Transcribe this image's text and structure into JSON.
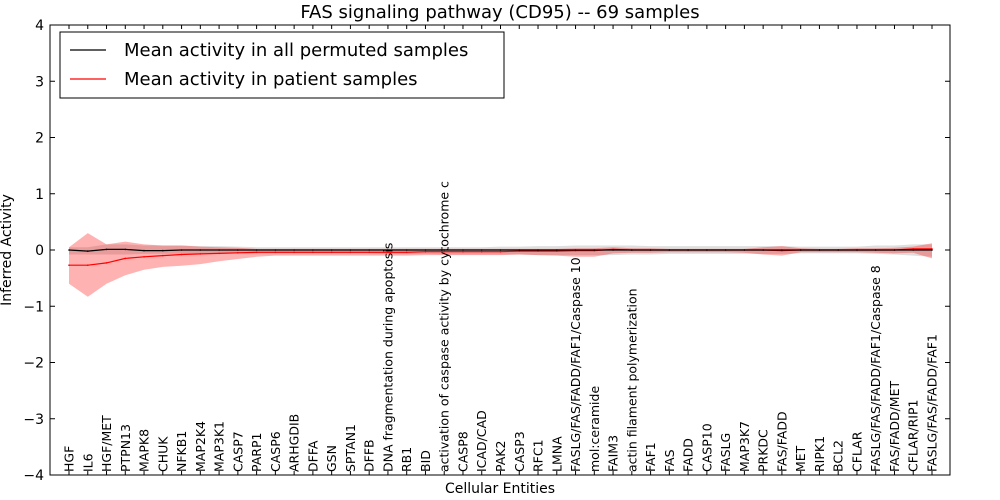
{
  "chart_data": {
    "type": "line",
    "title": "FAS signaling pathway (CD95) -- 69 samples",
    "xlabel": "Cellular Entities",
    "ylabel": "Inferred Activity",
    "ylim": [
      -4,
      4
    ],
    "yticks": [
      -4,
      -3,
      -2,
      -1,
      0,
      1,
      2,
      3,
      4
    ],
    "ytick_labels": [
      "−4",
      "−3",
      "−2",
      "−1",
      "0",
      "1",
      "2",
      "3",
      "4"
    ],
    "legend_position": "top-left",
    "categories": [
      "HGF",
      "IL6",
      "HGF/MET",
      "PTPN13",
      "MAPK8",
      "CHUK",
      "NFKB1",
      "MAP2K4",
      "MAP3K1",
      "CASP7",
      "PARP1",
      "CASP6",
      "ARHGDIB",
      "DFFA",
      "GSN",
      "SPTAN1",
      "DFFB",
      "DNA fragmentation during apoptosis",
      "RB1",
      "BID",
      "activation of caspase activity by cytochrome c",
      "CASP8",
      "ICAD/CAD",
      "PAK2",
      "CASP3",
      "RFC1",
      "LMNA",
      "FASLG/FAS/FADD/FAF1/Caspase 10",
      "mol:ceramide",
      "FAIM3",
      "actin filament polymerization",
      "FAF1",
      "FAS",
      "FADD",
      "CASP10",
      "FASLG",
      "MAP3K7",
      "PRKDC",
      "FAS/FADD",
      "MET",
      "RIPK1",
      "BCL2",
      "CFLAR",
      "FASLG/FAS/FADD/FAF1/Caspase 8",
      "FAS/FADD/MET",
      "CFLAR/RIP1",
      "FASLG/FAS/FADD/FAF1"
    ],
    "series": [
      {
        "name": "Mean activity in all permuted samples",
        "color": "#000000",
        "values": [
          0.0,
          -0.02,
          0.01,
          0.01,
          -0.01,
          -0.01,
          0.0,
          0.0,
          0.0,
          0.0,
          0.0,
          0.0,
          0.0,
          0.0,
          0.0,
          0.0,
          0.0,
          0.0,
          0.0,
          0.0,
          0.0,
          0.0,
          0.0,
          0.0,
          0.0,
          0.0,
          0.0,
          0.0,
          0.0,
          0.0,
          0.0,
          0.0,
          0.0,
          0.0,
          0.0,
          0.0,
          0.0,
          0.0,
          0.0,
          0.0,
          0.0,
          0.0,
          0.0,
          0.0,
          0.0,
          0.0,
          0.0
        ],
        "band_upper": [
          0.05,
          0.05,
          0.1,
          0.1,
          0.08,
          0.08,
          0.08,
          0.07,
          0.07,
          0.06,
          0.05,
          0.05,
          0.05,
          0.05,
          0.05,
          0.05,
          0.05,
          0.05,
          0.05,
          0.05,
          0.05,
          0.05,
          0.05,
          0.06,
          0.06,
          0.07,
          0.07,
          0.08,
          0.08,
          0.08,
          0.08,
          0.07,
          0.07,
          0.07,
          0.07,
          0.07,
          0.07,
          0.07,
          0.07,
          0.06,
          0.06,
          0.06,
          0.06,
          0.08,
          0.08,
          0.1,
          0.1
        ],
        "band_lower": [
          -0.08,
          -0.08,
          -0.08,
          -0.08,
          -0.07,
          -0.07,
          -0.07,
          -0.07,
          -0.06,
          -0.06,
          -0.06,
          -0.06,
          -0.06,
          -0.06,
          -0.06,
          -0.06,
          -0.06,
          -0.07,
          -0.07,
          -0.07,
          -0.08,
          -0.08,
          -0.08,
          -0.08,
          -0.08,
          -0.09,
          -0.09,
          -0.09,
          -0.09,
          -0.09,
          -0.08,
          -0.08,
          -0.07,
          -0.07,
          -0.07,
          -0.07,
          -0.07,
          -0.07,
          -0.07,
          -0.06,
          -0.06,
          -0.06,
          -0.06,
          -0.07,
          -0.08,
          -0.1,
          -0.12
        ]
      },
      {
        "name": "Mean activity in patient samples",
        "color": "#ff0000",
        "values": [
          -0.27,
          -0.27,
          -0.23,
          -0.15,
          -0.12,
          -0.1,
          -0.08,
          -0.07,
          -0.06,
          -0.05,
          -0.04,
          -0.04,
          -0.04,
          -0.04,
          -0.04,
          -0.04,
          -0.04,
          -0.04,
          -0.04,
          -0.03,
          -0.03,
          -0.03,
          -0.03,
          -0.03,
          -0.02,
          -0.02,
          -0.02,
          -0.01,
          -0.01,
          0.01,
          0.0,
          0.0,
          0.0,
          0.0,
          0.0,
          0.0,
          0.0,
          0.0,
          -0.01,
          0.0,
          0.0,
          0.0,
          0.0,
          0.0,
          0.0,
          0.02,
          0.02
        ],
        "band_upper": [
          0.05,
          0.3,
          0.1,
          0.15,
          0.1,
          0.08,
          0.08,
          0.06,
          0.05,
          0.04,
          0.02,
          0.02,
          0.02,
          0.02,
          0.02,
          0.02,
          0.02,
          0.02,
          0.02,
          0.02,
          0.02,
          0.02,
          0.02,
          0.02,
          0.02,
          0.02,
          0.02,
          0.03,
          0.03,
          0.05,
          0.03,
          0.03,
          0.02,
          0.02,
          0.02,
          0.02,
          0.02,
          0.05,
          0.07,
          0.03,
          0.02,
          0.02,
          0.03,
          0.03,
          0.04,
          0.06,
          0.12
        ],
        "band_lower": [
          -0.6,
          -0.83,
          -0.6,
          -0.45,
          -0.35,
          -0.3,
          -0.28,
          -0.25,
          -0.2,
          -0.16,
          -0.12,
          -0.1,
          -0.1,
          -0.1,
          -0.1,
          -0.1,
          -0.1,
          -0.1,
          -0.1,
          -0.09,
          -0.09,
          -0.09,
          -0.09,
          -0.09,
          -0.08,
          -0.09,
          -0.1,
          -0.12,
          -0.12,
          -0.06,
          -0.05,
          -0.05,
          -0.04,
          -0.04,
          -0.04,
          -0.04,
          -0.05,
          -0.08,
          -0.1,
          -0.04,
          -0.04,
          -0.04,
          -0.04,
          -0.05,
          -0.06,
          -0.05,
          -0.15
        ]
      }
    ]
  }
}
